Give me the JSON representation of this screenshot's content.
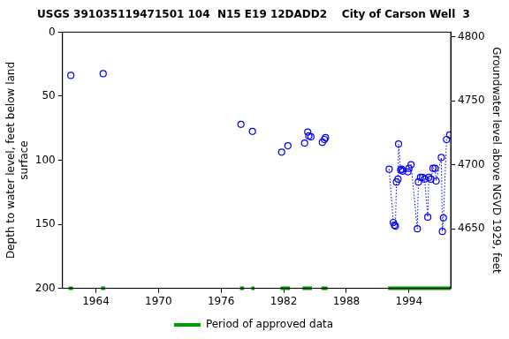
{
  "chart_data": {
    "type": "scatter",
    "title": "USGS 391035119471501 104  N15 E19 12DADD2    City of Carson Well  3",
    "y_label": [
      "Depth to water level, feet below land",
      "surface"
    ],
    "y2_label": "Groundwater level above NGVD 1929, feet",
    "xlim": [
      1960.8,
      1998
    ],
    "xticks": [
      1964,
      1970,
      1976,
      1982,
      1988,
      1994
    ],
    "ylim": [
      0,
      200
    ],
    "yticks": [
      0,
      50,
      100,
      150,
      200
    ],
    "y2lim": [
      4603.5,
      4803.5
    ],
    "y2ticks": [
      4650,
      4700,
      4750,
      4800
    ],
    "grid": false,
    "legend": "bottom",
    "series": [
      {
        "type": "scatter",
        "marker": "circle",
        "color": "#0000ff",
        "x": [
          1961.6,
          1964.7,
          1977.9,
          1979.0,
          1981.8,
          1982.4,
          1984.0,
          1984.3,
          1984.4,
          1984.6,
          1985.7,
          1985.9,
          1986.0
        ],
        "values": [
          33.8,
          32.4,
          72,
          77.5,
          93.7,
          88.7,
          86.6,
          78,
          81,
          81.7,
          86,
          83.8,
          82.4
        ]
      },
      {
        "type": "line",
        "marker": "circle",
        "line_style": "dotted",
        "color": "#0000ff",
        "x": [
          1992.1,
          1992.5,
          1992.6,
          1992.7,
          1992.8,
          1992.95,
          1993.0,
          1993.2,
          1993.3,
          1993.4,
          1993.9,
          1994.0,
          1994.2,
          1994.8,
          1994.9,
          1995.1,
          1995.3,
          1995.5,
          1995.8,
          1995.9,
          1996.1,
          1996.3,
          1996.5,
          1996.6,
          1997.1,
          1997.2,
          1997.3,
          1997.6,
          1997.9
        ],
        "values": [
          107,
          148.6,
          150.7,
          151.4,
          117,
          114.8,
          87.3,
          107.7,
          107,
          108.5,
          109,
          106.3,
          103.5,
          153.5,
          117,
          113.4,
          113.4,
          114.8,
          144.4,
          113.4,
          114.8,
          106.3,
          106.3,
          116.2,
          97.9,
          155.6,
          145,
          83.8,
          80.3
        ]
      }
    ],
    "approved_periods": {
      "name": "Period of approved data",
      "color": "#009900",
      "periods": [
        [
          1961.4,
          1961.8
        ],
        [
          1964.5,
          1964.9
        ],
        [
          1977.8,
          1978.2
        ],
        [
          1978.9,
          1979.2
        ],
        [
          1981.7,
          1982.6
        ],
        [
          1983.8,
          1984.7
        ],
        [
          1985.6,
          1986.2
        ],
        [
          1992.0,
          1998
        ]
      ]
    }
  }
}
